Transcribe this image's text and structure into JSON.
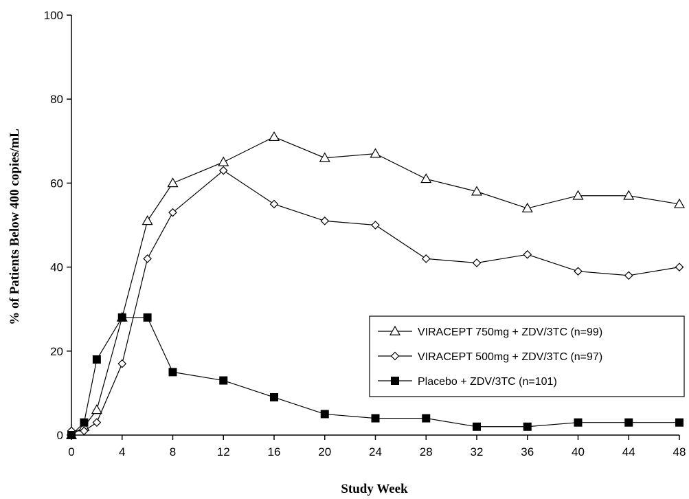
{
  "chart_data": {
    "type": "line",
    "xlabel": "Study Week",
    "ylabel": "% of Patients Below 400 copies/mL",
    "xlim": [
      0,
      48
    ],
    "ylim": [
      0,
      100
    ],
    "xticks": [
      0,
      4,
      8,
      12,
      16,
      20,
      24,
      28,
      32,
      36,
      40,
      44,
      48
    ],
    "yticks": [
      0,
      20,
      40,
      60,
      80,
      100
    ],
    "grid": false,
    "legend_position": "lower-right",
    "series": [
      {
        "name": "VIRACEPT 750mg + ZDV/3TC (n=99)",
        "marker": "triangle-open",
        "x": [
          0,
          1,
          2,
          4,
          6,
          8,
          12,
          16,
          20,
          24,
          28,
          32,
          36,
          40,
          44,
          48
        ],
        "y": [
          0,
          2,
          6,
          28,
          51,
          60,
          65,
          71,
          66,
          67,
          61,
          58,
          54,
          57,
          57,
          55
        ]
      },
      {
        "name": "VIRACEPT 500mg + ZDV/3TC (n=97)",
        "marker": "diamond-open",
        "x": [
          0,
          1,
          2,
          4,
          6,
          8,
          12,
          16,
          20,
          24,
          28,
          32,
          36,
          40,
          44,
          48
        ],
        "y": [
          1,
          1,
          3,
          17,
          42,
          53,
          63,
          55,
          51,
          50,
          42,
          41,
          43,
          39,
          38,
          40
        ]
      },
      {
        "name": "Placebo + ZDV/3TC (n=101)",
        "marker": "square-filled",
        "x": [
          0,
          1,
          2,
          4,
          6,
          8,
          12,
          16,
          20,
          24,
          28,
          32,
          36,
          40,
          44,
          48
        ],
        "y": [
          0,
          3,
          18,
          28,
          28,
          15,
          13,
          9,
          5,
          4,
          4,
          2,
          2,
          3,
          3,
          3
        ]
      }
    ]
  }
}
